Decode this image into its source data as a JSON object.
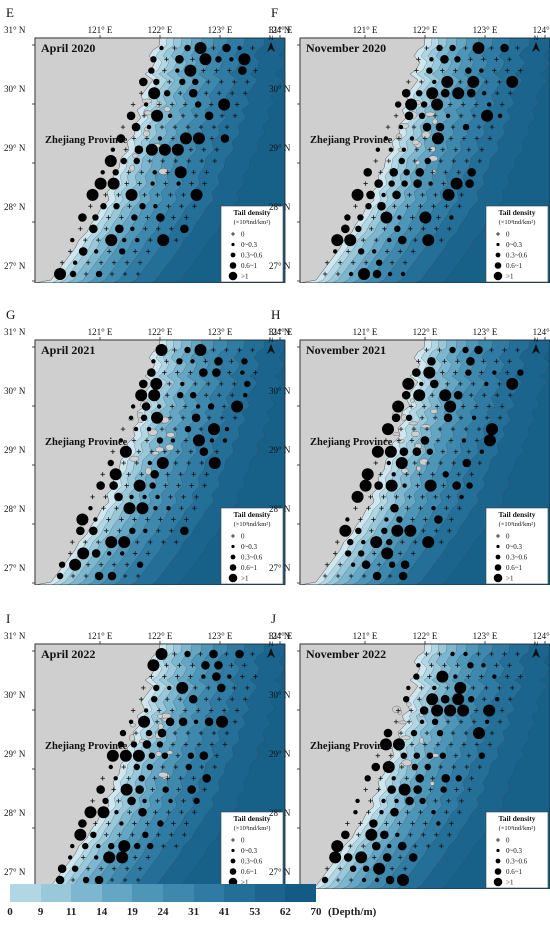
{
  "common": {
    "lon_labels": [
      "121° E",
      "122° E",
      "123° E",
      "124° E"
    ],
    "lat_labels": [
      "31° N",
      "30° N",
      "29° N",
      "28° N",
      "27° N"
    ],
    "province": "Zhejiang Province",
    "north": "N",
    "legend": {
      "title": "Tail density",
      "unit": "(×10³ind/km²)",
      "classes": [
        "0",
        "0~0.3",
        "0.3~0.6",
        "0.6~1",
        ">1"
      ]
    }
  },
  "panels": [
    {
      "letter": "E",
      "title": "April 2020"
    },
    {
      "letter": "F",
      "title": "November 2020"
    },
    {
      "letter": "G",
      "title": "April 2021"
    },
    {
      "letter": "H",
      "title": "November 2021"
    },
    {
      "letter": "I",
      "title": "April 2022"
    },
    {
      "letter": "J",
      "title": "November 2022"
    }
  ],
  "depth_scale": {
    "labels": [
      "0",
      "9",
      "11",
      "14",
      "19",
      "24",
      "31",
      "41",
      "53",
      "62",
      "70"
    ],
    "unit": "(Depth/m)",
    "colors": [
      "#cfe6ee",
      "#b2d7e4",
      "#98c8da",
      "#7db7cf",
      "#64a6c4",
      "#4e96b8",
      "#3e88ae",
      "#2f7ba3",
      "#236f98",
      "#1a648e",
      "#135a84"
    ]
  },
  "colors": {
    "land": "#cfcfcf",
    "dot": "#000000",
    "sea_deep": "#176189",
    "sea_shallow": "#cfe6ee"
  }
}
